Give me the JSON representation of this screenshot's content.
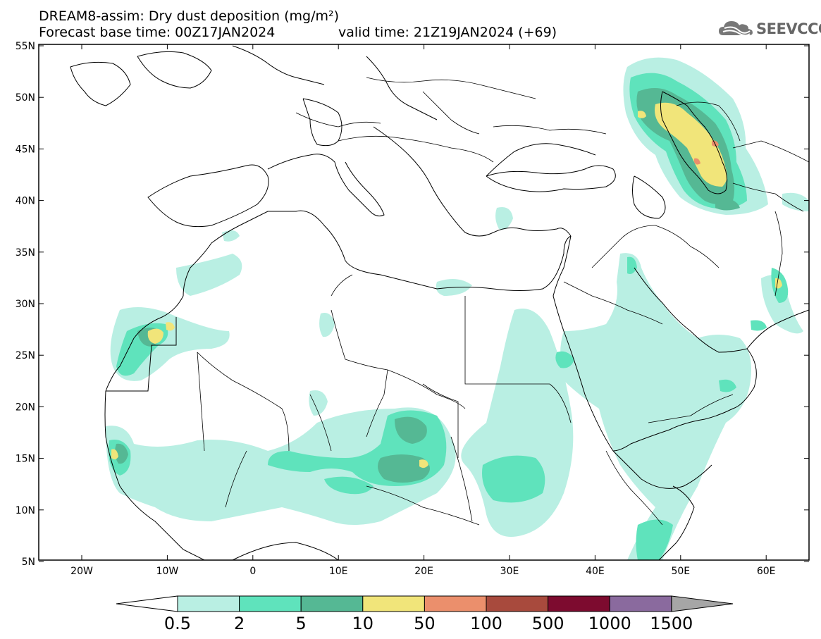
{
  "header": {
    "line1": "DREAM8-assim: Dry dust deposition (mg/m²)",
    "line2_base": "Forecast base time: 00Z17JAN2024",
    "line2_valid": "valid time: 21Z19JAN2024 (+69)"
  },
  "logo": {
    "text": "SEEVCCC",
    "icon": "cloud-icon"
  },
  "axes": {
    "lat_labels": [
      "55N",
      "50N",
      "45N",
      "40N",
      "35N",
      "30N",
      "25N",
      "20N",
      "15N",
      "10N",
      "5N"
    ],
    "lon_labels": [
      "20W",
      "10W",
      "0",
      "10E",
      "20E",
      "30E",
      "40E",
      "50E",
      "60E"
    ]
  },
  "colorbar": {
    "labels": [
      "0.5",
      "2",
      "5",
      "10",
      "50",
      "100",
      "500",
      "1000",
      "1500"
    ],
    "colors": [
      "#b9efe3",
      "#5fe3bc",
      "#55b894",
      "#f1e57a",
      "#eb8f6c",
      "#a84a3d",
      "#7d0b2f",
      "#8a6a9e",
      "#a6a6a6"
    ]
  }
}
